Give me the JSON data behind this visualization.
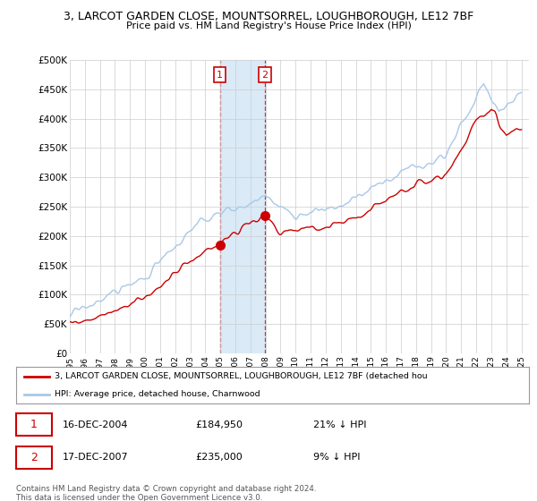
{
  "title": "3, LARCOT GARDEN CLOSE, MOUNTSORREL, LOUGHBOROUGH, LE12 7BF",
  "subtitle": "Price paid vs. HM Land Registry's House Price Index (HPI)",
  "ylim": [
    0,
    500000
  ],
  "yticks": [
    0,
    50000,
    100000,
    150000,
    200000,
    250000,
    300000,
    350000,
    400000,
    450000,
    500000
  ],
  "ytick_labels": [
    "£0",
    "£50K",
    "£100K",
    "£150K",
    "£200K",
    "£250K",
    "£300K",
    "£350K",
    "£400K",
    "£450K",
    "£500K"
  ],
  "sale1_date": 2004.96,
  "sale1_price": 184950,
  "sale2_date": 2007.96,
  "sale2_price": 235000,
  "hpi_color": "#a8c8e8",
  "price_color": "#cc0000",
  "vband_color": "#daeaf7",
  "legend_label_price": "3, LARCOT GARDEN CLOSE, MOUNTSORREL, LOUGHBOROUGH, LE12 7BF (detached hou",
  "legend_label_hpi": "HPI: Average price, detached house, Charnwood",
  "footer": "Contains HM Land Registry data © Crown copyright and database right 2024.\nThis data is licensed under the Open Government Licence v3.0.",
  "background_color": "#ffffff",
  "grid_color": "#cccccc"
}
